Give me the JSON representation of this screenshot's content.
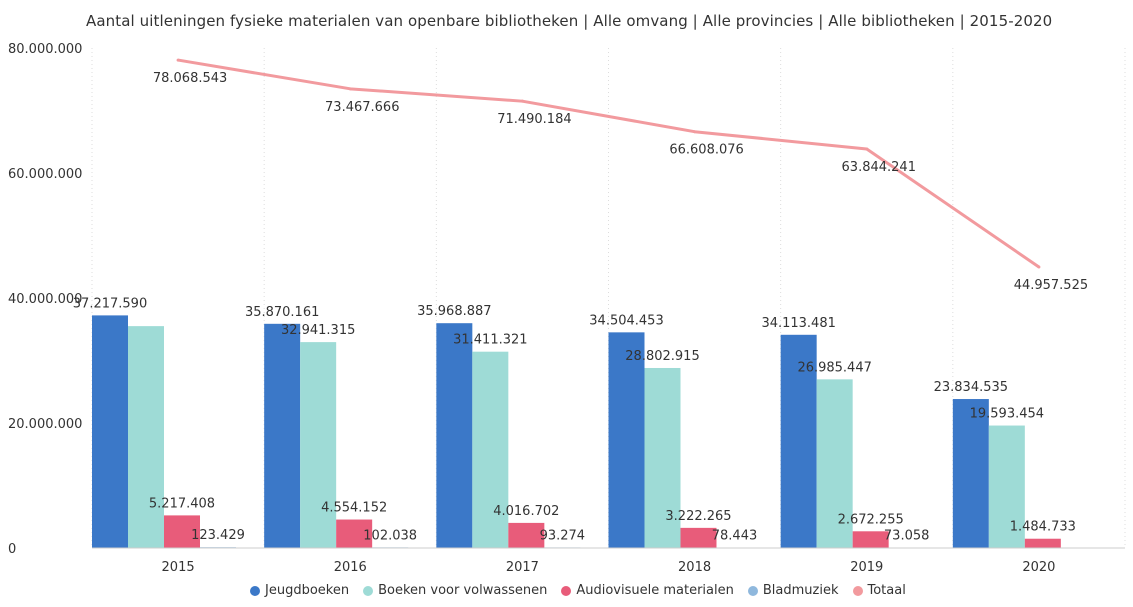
{
  "chart_data": {
    "type": "bar",
    "title": "Aantal uitleningen fysieke materialen van openbare bibliotheken | Alle omvang | Alle provincies | Alle bibliotheken | 2015-2020",
    "categories": [
      "2015",
      "2016",
      "2017",
      "2018",
      "2019",
      "2020"
    ],
    "ylim": [
      0,
      80000000
    ],
    "yticks": [
      0,
      20000000,
      40000000,
      60000000,
      80000000
    ],
    "ytick_labels": [
      "0",
      "20.000.000",
      "40.000.000",
      "60.000.000",
      "80.000.000"
    ],
    "grid": "vertical dotted",
    "legend_position": "bottom",
    "series": [
      {
        "name": "Jeugdboeken",
        "type": "bar",
        "color": "#3B78C8",
        "values": [
          37217590,
          35870161,
          35968887,
          34504453,
          34113481,
          23834535
        ],
        "labels": [
          "37.217.590",
          "35.870.161",
          "35.968.887",
          "34.504.453",
          "34.113.481",
          "23.834.535"
        ]
      },
      {
        "name": "Boeken voor volwassenen",
        "type": "bar",
        "color": "#9EDBD6",
        "values": [
          35500000,
          32941315,
          31411321,
          28802915,
          26985447,
          19593454
        ],
        "labels": [
          "",
          "32.941.315",
          "31.411.321",
          "28.802.915",
          "26.985.447",
          "19.593.454"
        ]
      },
      {
        "name": "Audiovisuele materialen",
        "type": "bar",
        "color": "#E85C7A",
        "values": [
          5217408,
          4554152,
          4016702,
          3222265,
          2672255,
          1484733
        ],
        "labels": [
          "5.217.408",
          "4.554.152",
          "4.016.702",
          "3.222.265",
          "2.672.255",
          "1.484.733"
        ]
      },
      {
        "name": "Bladmuziek",
        "type": "bar",
        "color": "#8FB8DD",
        "values": [
          123429,
          102038,
          93274,
          78443,
          73058,
          60000
        ],
        "labels": [
          "123.429",
          "102.038",
          "93.274",
          "78.443",
          "73.058",
          ""
        ]
      },
      {
        "name": "Totaal",
        "type": "line",
        "color": "#F29A9E",
        "values": [
          78068543,
          73467666,
          71490184,
          66608076,
          63844241,
          44957525
        ],
        "labels": [
          "78.068.543",
          "73.467.666",
          "71.490.184",
          "66.608.076",
          "63.844.241",
          "44.957.525"
        ]
      }
    ]
  }
}
